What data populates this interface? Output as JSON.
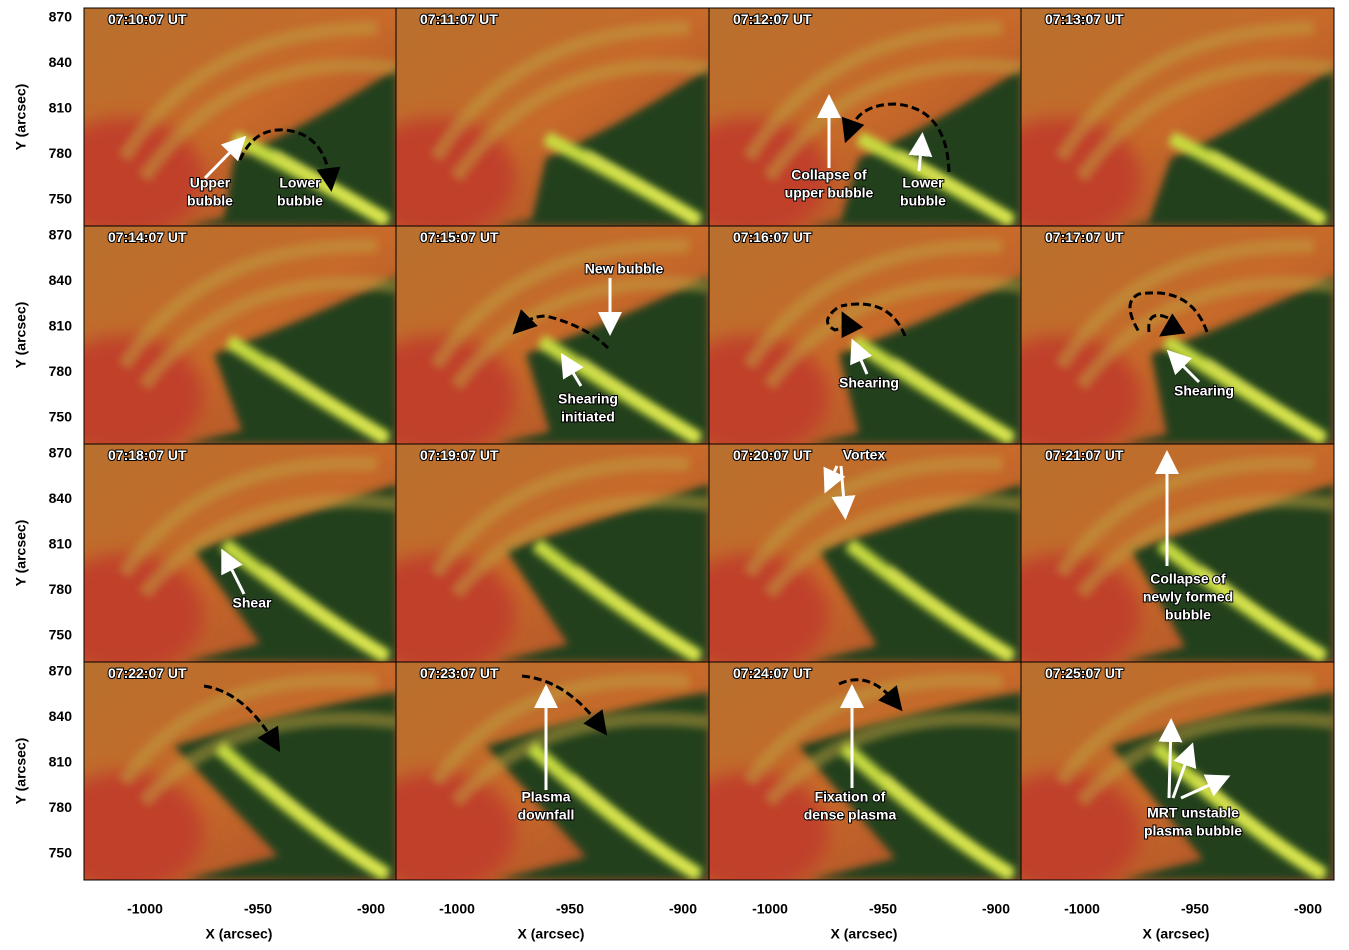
{
  "figure": {
    "y_label": "Y (arcsec)",
    "x_label": "X (arcsec)",
    "yticks": [
      870,
      840,
      810,
      780,
      750
    ],
    "xticks": [
      -1000,
      -950,
      -900
    ],
    "panels": [
      {
        "time": "07:10:07 UT",
        "annotations": [
          {
            "lines": [
              "Upper",
              "bubble"
            ]
          },
          {
            "lines": [
              "Lower",
              "bubble"
            ]
          }
        ]
      },
      {
        "time": "07:11:07 UT",
        "annotations": []
      },
      {
        "time": "07:12:07 UT",
        "annotations": [
          {
            "lines": [
              "Collapse of",
              "upper bubble"
            ]
          },
          {
            "lines": [
              "Lower",
              "bubble"
            ]
          }
        ]
      },
      {
        "time": "07:13:07 UT",
        "annotations": []
      },
      {
        "time": "07:14:07 UT",
        "annotations": []
      },
      {
        "time": "07:15:07 UT",
        "annotations": [
          {
            "lines": [
              "New bubble"
            ]
          },
          {
            "lines": [
              "Shearing",
              "initiated"
            ]
          }
        ]
      },
      {
        "time": "07:16:07 UT",
        "annotations": [
          {
            "lines": [
              "Shearing"
            ]
          }
        ]
      },
      {
        "time": "07:17:07 UT",
        "annotations": [
          {
            "lines": [
              "Shearing"
            ]
          }
        ]
      },
      {
        "time": "07:18:07 UT",
        "annotations": [
          {
            "lines": [
              "Shear"
            ]
          }
        ]
      },
      {
        "time": "07:19:07 UT",
        "annotations": []
      },
      {
        "time": "07:20:07 UT",
        "annotations": [
          {
            "lines": [
              "Vortex"
            ]
          }
        ]
      },
      {
        "time": "07:21:07 UT",
        "annotations": [
          {
            "lines": [
              "Collapse of",
              "newly formed",
              "bubble"
            ]
          }
        ]
      },
      {
        "time": "07:22:07 UT",
        "annotations": []
      },
      {
        "time": "07:23:07 UT",
        "annotations": [
          {
            "lines": [
              "Plasma",
              "downfall"
            ]
          }
        ]
      },
      {
        "time": "07:24:07 UT",
        "annotations": [
          {
            "lines": [
              "Fixation of",
              "dense plasma"
            ]
          }
        ]
      },
      {
        "time": "07:25:07 UT",
        "annotations": [
          {
            "lines": [
              "MRT unstable",
              "plasma bubble"
            ]
          }
        ]
      }
    ]
  }
}
